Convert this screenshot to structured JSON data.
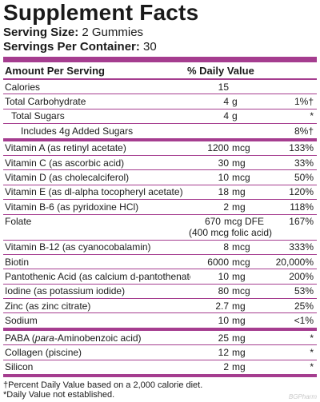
{
  "title": "Supplement Facts",
  "serving_size_label": "Serving Size:",
  "serving_size_value": " 2 Gummies",
  "servings_label": "Servings Per Container:",
  "servings_value": " 30",
  "header": {
    "amount": "Amount Per Serving",
    "dv": "% Daily Value"
  },
  "rows": [
    {
      "name": "Calories",
      "num": "15",
      "unit": "",
      "pct": ""
    },
    {
      "name": "Total Carbohydrate",
      "num": "4",
      "unit": "g",
      "pct": "1%†"
    },
    {
      "name": "Total Sugars",
      "num": "4",
      "unit": "g",
      "pct": "*"
    },
    {
      "name": "Includes 4g Added Sugars",
      "num": "",
      "unit": "",
      "pct": "8%†"
    },
    {
      "name": "Vitamin A (as retinyl acetate)",
      "num": "1200",
      "unit": "mcg",
      "pct": "133%"
    },
    {
      "name": "Vitamin C (as ascorbic acid)",
      "num": "30",
      "unit": "mg",
      "pct": "33%"
    },
    {
      "name": "Vitamin D (as cholecalciferol)",
      "num": "10",
      "unit": "mcg",
      "pct": "50%"
    },
    {
      "name": "Vitamin E (as dl-alpha tocopheryl acetate)",
      "num": "18",
      "unit": "mg",
      "pct": "120%"
    },
    {
      "name": "Vitamin B-6 (as pyridoxine HCl)",
      "num": "2",
      "unit": "mg",
      "pct": "118%"
    },
    {
      "name": "Folate",
      "num": "670",
      "unit": "mcg DFE",
      "pct": "167%",
      "line2": "(400 mcg folic acid)"
    },
    {
      "name": "Vitamin B-12 (as cyanocobalamin)",
      "num": "8",
      "unit": "mcg",
      "pct": "333%"
    },
    {
      "name": "Biotin",
      "num": "6000",
      "unit": "mcg",
      "pct": "20,000%"
    },
    {
      "name": "Pantothenic Acid (as calcium d-pantothenate)",
      "num": "10",
      "unit": "mg",
      "pct": "200%"
    },
    {
      "name": "Iodine (as potassium iodide)",
      "num": "80",
      "unit": "mcg",
      "pct": "53%"
    },
    {
      "name": "Zinc (as zinc citrate)",
      "num": "2.7",
      "unit": "mg",
      "pct": "25%"
    },
    {
      "name": "Sodium",
      "num": "10",
      "unit": "mg",
      "pct": "<1%"
    },
    {
      "name_pre": "PABA (",
      "name_em": "para",
      "name_post": "-Aminobenzoic acid)",
      "num": "25",
      "unit": "mg",
      "pct": "*"
    },
    {
      "name": "Collagen (piscine)",
      "num": "12",
      "unit": "mg",
      "pct": "*"
    },
    {
      "name": "Silicon",
      "num": "2",
      "unit": "mg",
      "pct": "*"
    }
  ],
  "footnotes": [
    "†Percent Daily Value based on a 2,000 calorie diet.",
    "*Daily Value not established."
  ],
  "watermark": "BGPharm",
  "colors": {
    "bar": "#a53d8f",
    "text": "#1a1a1a",
    "background": "#ffffff"
  }
}
